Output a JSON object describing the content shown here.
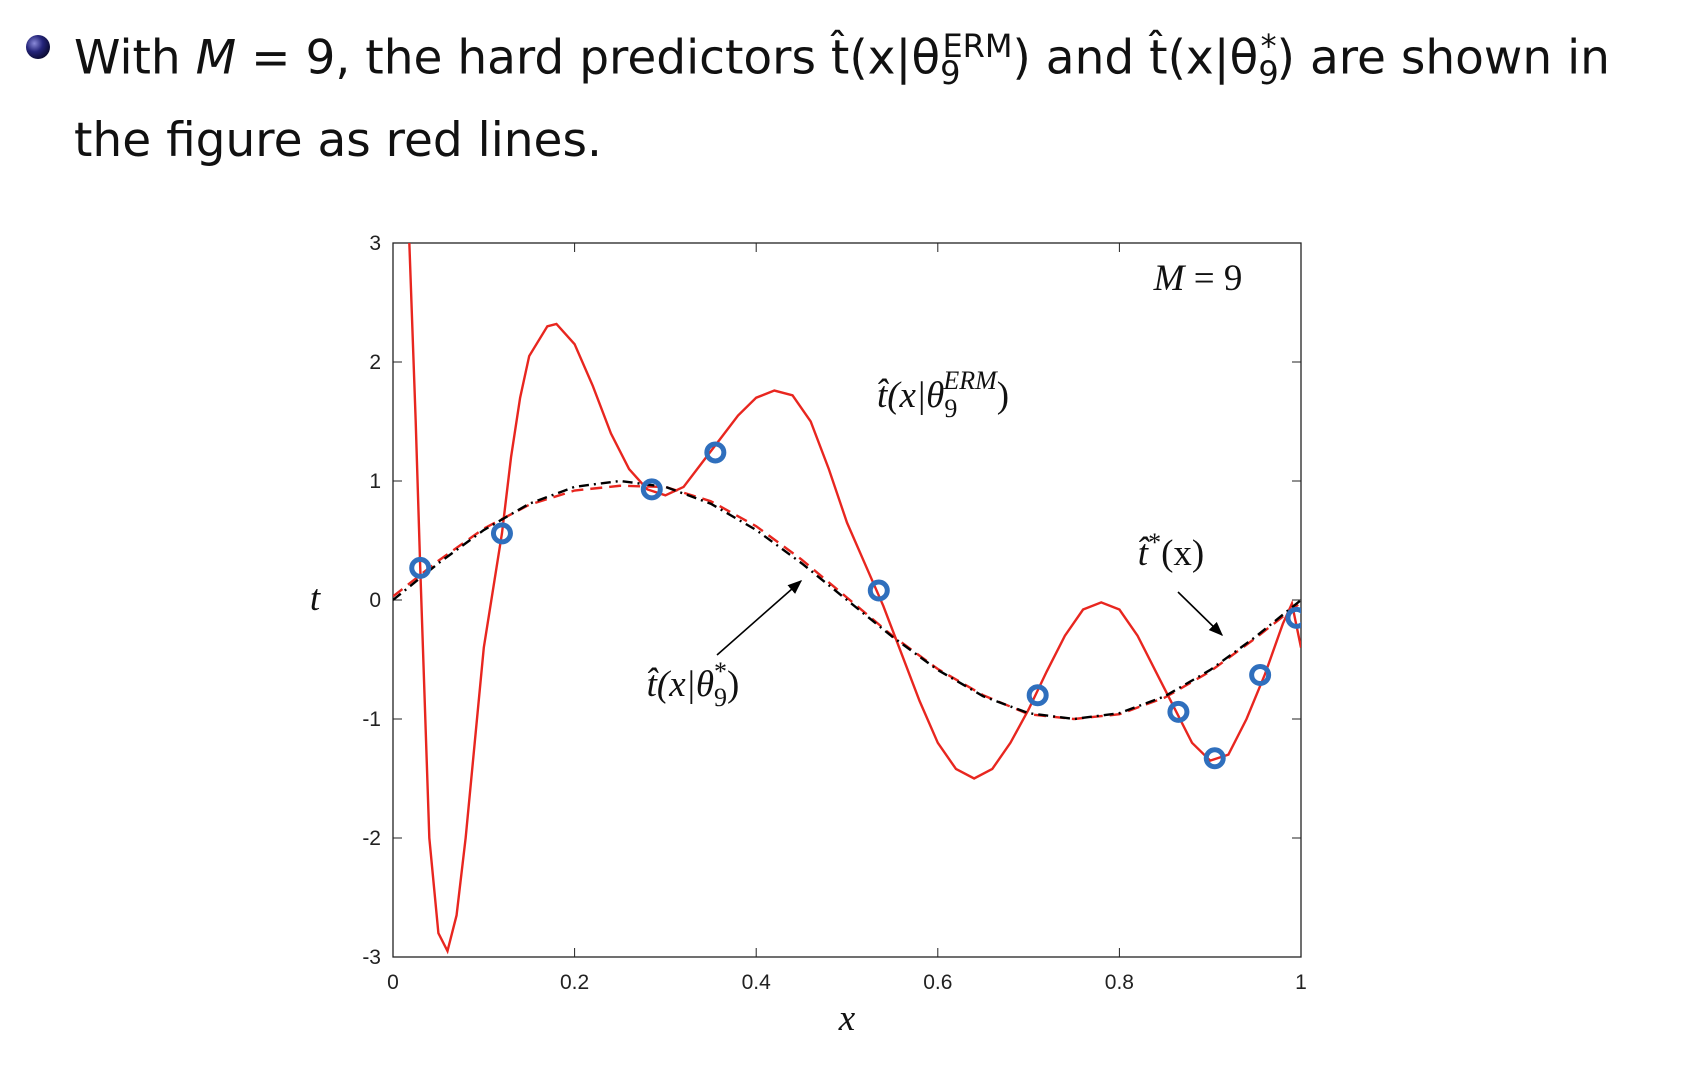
{
  "slide": {
    "segments": [
      "With ",
      "M",
      " = 9, the hard predictors ",
      "t̂(x|θ",
      "9",
      "ERM",
      ") and ",
      "t̂(x|θ",
      "9",
      "*",
      ") are shown in",
      "the figure as red lines."
    ]
  },
  "chart_data": {
    "type": "line",
    "xlabel": "x",
    "ylabel": "t",
    "xlim": [
      0,
      1
    ],
    "ylim": [
      -3,
      3
    ],
    "xticks": [
      0,
      0.2,
      0.4,
      0.6,
      0.8,
      1
    ],
    "yticks": [
      -3,
      -2,
      -1,
      0,
      1,
      2,
      3
    ],
    "grid": false,
    "series": [
      {
        "color": "#e8261f",
        "dash": "solid",
        "x": [
          0.018,
          0.025,
          0.03,
          0.04,
          0.05,
          0.06,
          0.07,
          0.08,
          0.09,
          0.1,
          0.12,
          0.13,
          0.14,
          0.15,
          0.17,
          0.18,
          0.2,
          0.22,
          0.24,
          0.26,
          0.28,
          0.3,
          0.32,
          0.34,
          0.36,
          0.38,
          0.4,
          0.42,
          0.44,
          0.46,
          0.48,
          0.5,
          0.52,
          0.54,
          0.56,
          0.58,
          0.6,
          0.62,
          0.64,
          0.66,
          0.68,
          0.7,
          0.72,
          0.74,
          0.76,
          0.78,
          0.8,
          0.82,
          0.84,
          0.86,
          0.88,
          0.9,
          0.92,
          0.94,
          0.96,
          0.98,
          0.99,
          1.0
        ],
        "values": [
          3,
          1.5,
          0.27,
          -2.0,
          -2.8,
          -2.95,
          -2.65,
          -2.0,
          -1.2,
          -0.4,
          0.56,
          1.2,
          1.7,
          2.05,
          2.3,
          2.32,
          2.15,
          1.8,
          1.4,
          1.1,
          0.93,
          0.88,
          0.95,
          1.15,
          1.35,
          1.55,
          1.7,
          1.76,
          1.72,
          1.5,
          1.1,
          0.65,
          0.3,
          -0.05,
          -0.45,
          -0.85,
          -1.2,
          -1.42,
          -1.5,
          -1.42,
          -1.2,
          -0.92,
          -0.6,
          -0.3,
          -0.08,
          -0.02,
          -0.08,
          -0.3,
          -0.6,
          -0.9,
          -1.2,
          -1.35,
          -1.3,
          -1.0,
          -0.63,
          -0.2,
          -0.03,
          -0.4
        ]
      },
      {
        "color": "#e8261f",
        "dash": "dashed",
        "x": [
          0,
          0.05,
          0.1,
          0.15,
          0.2,
          0.25,
          0.3,
          0.35,
          0.4,
          0.45,
          0.5,
          0.55,
          0.6,
          0.65,
          0.7,
          0.75,
          0.8,
          0.85,
          0.9,
          0.95,
          1
        ],
        "values": [
          0.03,
          0.33,
          0.6,
          0.8,
          0.92,
          0.96,
          0.95,
          0.83,
          0.62,
          0.34,
          0.02,
          -0.3,
          -0.58,
          -0.8,
          -0.96,
          -1.0,
          -0.96,
          -0.82,
          -0.6,
          -0.32,
          -0.02
        ]
      },
      {
        "color": "#000000",
        "dash": "dashdot",
        "x": [
          0,
          0.05,
          0.1,
          0.15,
          0.2,
          0.25,
          0.3,
          0.35,
          0.4,
          0.45,
          0.5,
          0.55,
          0.6,
          0.65,
          0.7,
          0.75,
          0.8,
          0.85,
          0.9,
          0.95,
          1
        ],
        "values": [
          0,
          0.309,
          0.588,
          0.809,
          0.951,
          1,
          0.951,
          0.809,
          0.588,
          0.309,
          0,
          -0.309,
          -0.588,
          -0.809,
          -0.951,
          -1,
          -0.951,
          -0.809,
          -0.588,
          -0.309,
          0
        ]
      },
      {
        "color": "#2f6fbd",
        "mode": "markers",
        "x": [
          0.03,
          0.12,
          0.285,
          0.355,
          0.535,
          0.71,
          0.865,
          0.905,
          0.955,
          0.995
        ],
        "values": [
          0.27,
          0.56,
          0.93,
          1.24,
          0.08,
          -0.8,
          -0.94,
          -1.33,
          -0.63,
          -0.15
        ]
      }
    ],
    "annotations": [
      {
        "parts": [
          "M",
          " = 9"
        ]
      },
      {
        "parts": [
          "t̂(x|θ",
          "9",
          "ERM",
          ")"
        ]
      },
      {
        "parts": [
          "t̂",
          "*",
          "(x)"
        ]
      },
      {
        "parts": [
          "t̂(x|θ",
          "9",
          "*",
          ")"
        ]
      }
    ]
  }
}
